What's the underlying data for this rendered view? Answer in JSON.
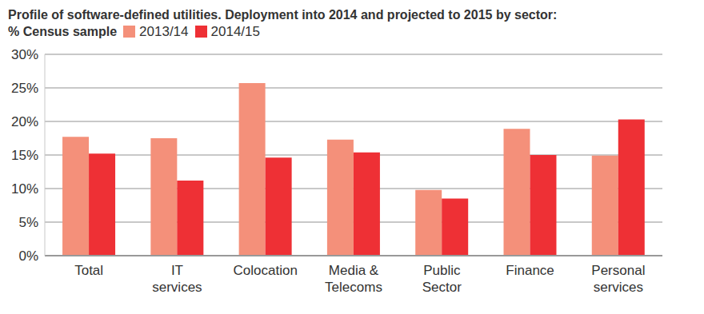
{
  "chart_data": {
    "type": "bar",
    "title": "Profile of software-defined utilities. Deployment into 2014 and projected to 2015 by sector: % Census sample",
    "categories": [
      "Total",
      "IT services",
      "Colocation",
      "Media & Telecoms",
      "Public Sector",
      "Finance",
      "Personal services"
    ],
    "series": [
      {
        "name": "2013/14",
        "color": "#f4907a",
        "values": [
          17.7,
          17.5,
          25.7,
          17.3,
          9.8,
          18.9,
          14.9
        ]
      },
      {
        "name": "2014/15",
        "color": "#ee3035",
        "values": [
          15.2,
          11.2,
          14.6,
          15.4,
          8.5,
          15.0,
          20.3
        ]
      }
    ],
    "ylim": [
      0,
      30
    ],
    "yticks": [
      {
        "value": 0,
        "label": "0%"
      },
      {
        "value": 5,
        "label": "5%"
      },
      {
        "value": 10,
        "label": "10%"
      },
      {
        "value": 15,
        "label": "15%"
      },
      {
        "value": 20,
        "label": "20%"
      },
      {
        "value": 25,
        "label": "25%"
      },
      {
        "value": 30,
        "label": "30%"
      }
    ],
    "grid": true,
    "legend": "top"
  }
}
